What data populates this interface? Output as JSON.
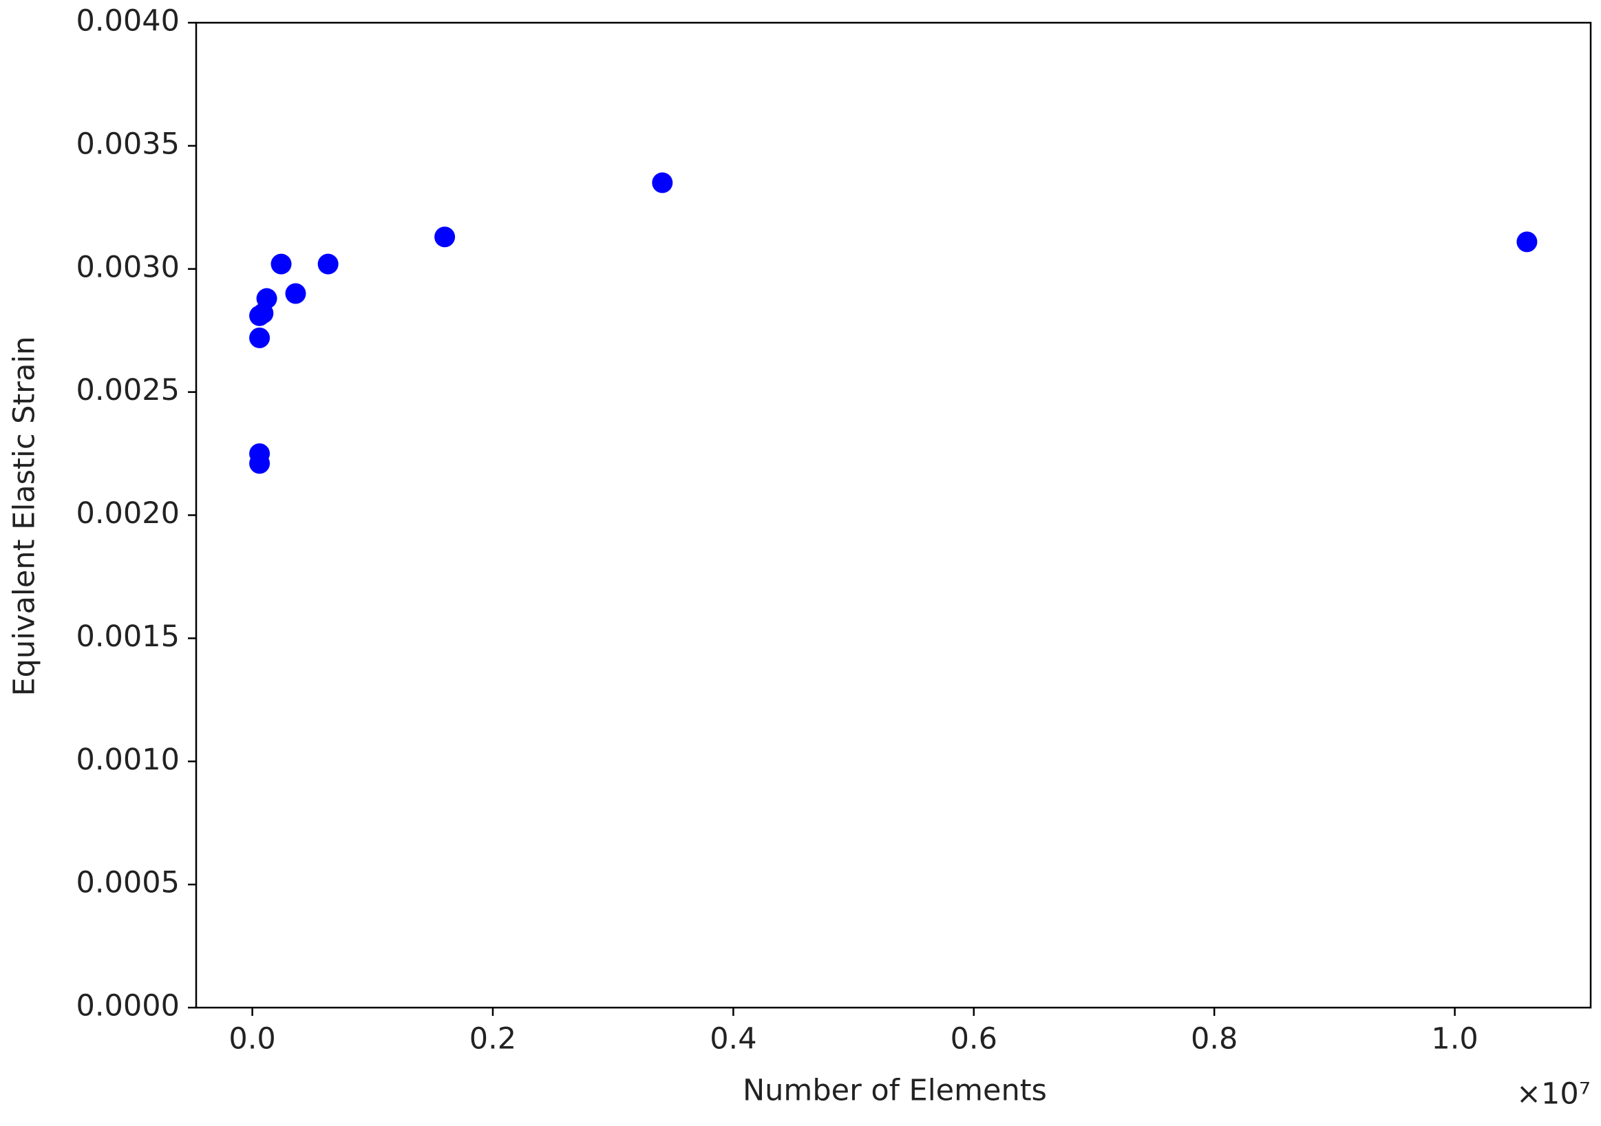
{
  "chart_data": {
    "type": "scatter",
    "x_label": "Number of Elements",
    "y_label": "Equivalent Elastic Strain",
    "x_multiplier": "×10⁷",
    "color": "#0000ff",
    "x": [
      0.006,
      0.006,
      0.009,
      0.012,
      0.006,
      0.006,
      0.024,
      0.036,
      0.063,
      0.16,
      0.341,
      1.06
    ],
    "y": [
      0.00272,
      0.00281,
      0.00282,
      0.00288,
      0.00225,
      0.00221,
      0.00302,
      0.0029,
      0.00302,
      0.00313,
      0.00335,
      0.00311
    ],
    "xlim": [
      -0.0467,
      1.113
    ],
    "ylim": [
      0,
      0.004
    ],
    "xticks": [
      {
        "value": 0,
        "label": "0.0"
      },
      {
        "value": 0.2,
        "label": "0.2"
      },
      {
        "value": 0.4,
        "label": "0.4"
      },
      {
        "value": 0.6,
        "label": "0.6"
      },
      {
        "value": 0.8,
        "label": "0.8"
      },
      {
        "value": 1.0,
        "label": "1.0"
      }
    ],
    "yticks": [
      {
        "value": 0,
        "label": "0.0000"
      },
      {
        "value": 0.0005,
        "label": "0.0005"
      },
      {
        "value": 0.001,
        "label": "0.0010"
      },
      {
        "value": 0.0015,
        "label": "0.0015"
      },
      {
        "value": 0.002,
        "label": "0.0020"
      },
      {
        "value": 0.0025,
        "label": "0.0025"
      },
      {
        "value": 0.003,
        "label": "0.0030"
      },
      {
        "value": 0.0035,
        "label": "0.0035"
      },
      {
        "value": 0.004,
        "label": "0.0040"
      }
    ],
    "grid": false
  }
}
